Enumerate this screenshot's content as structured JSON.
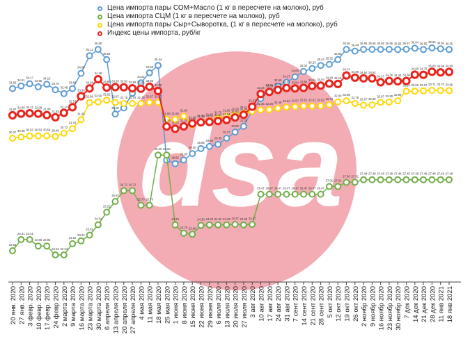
{
  "chart_data": {
    "type": "line",
    "categories": [
      "20 янв. 2020",
      "27 янв. 2020",
      "3 февр. 2020",
      "10 февр. 2020",
      "17 февр. 2020",
      "24 февр 2020",
      "2 марта 2020",
      "9 марта 2020",
      "16 марта 2020",
      "23 марта 2020",
      "30 марта 2020",
      "6 апреля 2020",
      "13 апреля 2020",
      "20 апреля 2020",
      "27 апреля 2020",
      "4 мая 2020",
      "11 мая 2020",
      "18 мая 2020",
      "25 мая 2020",
      "1 июня 2020",
      "8 июня 2020",
      "15 июня 2020",
      "22 июня 2020",
      "29 июня 2020",
      "6 июля 2020",
      "13 июля 2020",
      "20 июля 2020",
      "27 июля 2020",
      "3 авг 2020",
      "10 авг 2020",
      "17 авг 2020",
      "24 авг 2020",
      "31 авг 2020",
      "7 сент 2020",
      "14 сент 2020",
      "21 сент 2020",
      "28 сент 2020",
      "5 окт 2020",
      "12 окт 2020",
      "19 окт 2020",
      "26 окт 2020",
      "2 ноябр 2020",
      "9 ноябр 2020",
      "16 ноябр 2020",
      "23 ноябр 2020",
      "30 ноябр 2020",
      "7 дек 2020",
      "14 дек 2020",
      "21 дек 2020",
      "28 дек 2020",
      "11 янв 2021",
      "18 янв 2021"
    ],
    "series": [
      {
        "name": "Цена импорта пары СОМ+Масло (1 кг в пересчете на молоко), руб",
        "color": "#5b9bd5",
        "values": [
          33.83,
          34.01,
          34.17,
          33.95,
          34.13,
          33.75,
          33.48,
          33.83,
          34.89,
          36.12,
          36.56,
          35.85,
          32.06,
          32.48,
          33.5,
          34.23,
          34.93,
          35.44,
          28.85,
          28.6,
          28.85,
          29.3,
          29.65,
          29.8,
          29.95,
          30.37,
          30.8,
          31.2,
          32.3,
          33.13,
          33.65,
          33.99,
          34.27,
          34.65,
          35.02,
          35.23,
          35.44,
          35.52,
          35.85,
          36.56,
          36.44,
          36.56,
          36.56,
          36.56,
          36.56,
          36.55,
          36.57,
          36.64,
          36.55,
          36.66,
          36.6,
          36.55
        ]
      },
      {
        "name": "Цена импорта СЦМ (1 кг в пересчете на молоко), руб",
        "color": "#70ad47",
        "values": [
          22.53,
          23.31,
          23.31,
          22.86,
          22.86,
          22.24,
          22.24,
          23.02,
          23.22,
          23.62,
          24.34,
          25.22,
          25.97,
          26.72,
          26.72,
          25.7,
          25.7,
          29.2,
          29.2,
          24.33,
          23.75,
          23.68,
          24.3,
          24.33,
          24.33,
          24.33,
          24.37,
          24.33,
          24.37,
          26.47,
          26.47,
          26.47,
          26.47,
          26.47,
          26.47,
          26.47,
          26.47,
          27.01,
          27.01,
          27.3,
          27.31,
          27.48,
          27.48,
          27.48,
          27.48,
          27.48,
          27.48,
          27.48,
          27.48,
          27.48,
          27.48,
          27.48
        ]
      },
      {
        "name": "Цена импорта пары Сыр+Сыворотка, (1 кг в пересчете на молоко), руб",
        "color": "#ffd700",
        "values": [
          30.37,
          30.46,
          30.53,
          30.53,
          30.54,
          30.49,
          30.72,
          31.04,
          31.66,
          32.86,
          32.9,
          33.02,
          32.87,
          32.79,
          32.79,
          32.79,
          32.87,
          32.87,
          31.68,
          31.68,
          31.9,
          31.3,
          31.5,
          31.6,
          31.75,
          31.9,
          32.0,
          32.11,
          32.25,
          32.35,
          32.36,
          32.46,
          32.54,
          32.57,
          32.61,
          32.61,
          32.62,
          32.7,
          32.9,
          32.98,
          32.79,
          32.67,
          32.69,
          32.87,
          32.89,
          32.98,
          33.64,
          33.65,
          33.67,
          33.71,
          33.7,
          33.69
        ]
      },
      {
        "name": "Индекс цены импорта, руб/кг",
        "color": "#e8241c",
        "values": [
          31.97,
          32.08,
          32.11,
          32.08,
          31.98,
          31.83,
          32.14,
          32.53,
          33.3,
          33.84,
          34.48,
          33.9,
          33.93,
          33.92,
          33.85,
          33.82,
          33.96,
          33.66,
          31.19,
          31.03,
          31.2,
          31.4,
          31.48,
          31.51,
          31.57,
          31.64,
          31.82,
          32.0,
          32.57,
          33.46,
          33.6,
          33.74,
          33.87,
          33.84,
          33.88,
          34.01,
          34.04,
          34.18,
          34.15,
          34.74,
          34.59,
          34.54,
          34.54,
          34.27,
          34.36,
          34.34,
          34.36,
          34.8,
          34.79,
          35.0,
          34.96,
          34.99
        ]
      }
    ]
  },
  "legend": [
    {
      "label": "Цена импорта пары СОМ+Масло (1 кг в пересчете на молоко), руб",
      "color": "#5b9bd5"
    },
    {
      "label": "Цена импорта СЦМ (1 кг в пересчете на молоко), руб",
      "color": "#70ad47"
    },
    {
      "label": "Цена импорта пары Сыр+Сыворотка, (1 кг в пересчете на молоко), руб",
      "color": "#ffd700"
    },
    {
      "label": "Индекс цены импорта, руб/кг",
      "color": "#e8241c"
    }
  ],
  "watermark": {
    "text": "dsa",
    "color": "#f29aa3"
  }
}
